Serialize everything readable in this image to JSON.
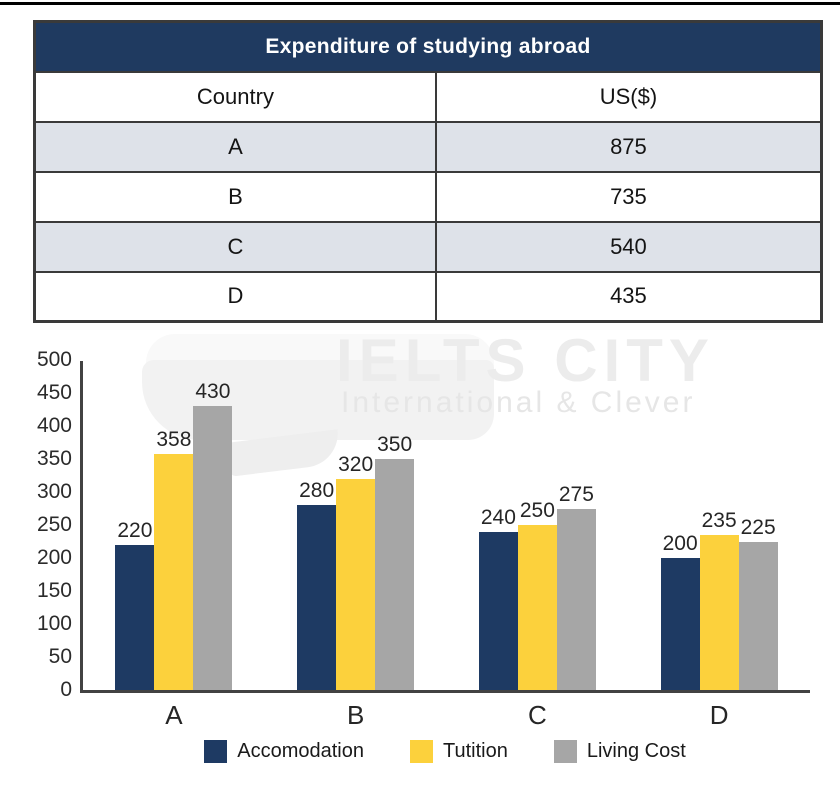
{
  "table": {
    "title": "Expenditure of studying abroad",
    "columns": [
      "Country",
      "US($)"
    ],
    "rows": [
      [
        "A",
        "875"
      ],
      [
        "B",
        "735"
      ],
      [
        "C",
        "540"
      ],
      [
        "D",
        "435"
      ]
    ]
  },
  "watermark": {
    "title": "IELTS CITY",
    "subtitle": "International & Clever"
  },
  "chart_data": {
    "type": "bar",
    "categories": [
      "A",
      "B",
      "C",
      "D"
    ],
    "series": [
      {
        "name": "Accomodation",
        "color": "#1E3A63",
        "values": [
          220,
          280,
          240,
          200
        ]
      },
      {
        "name": "Tutition",
        "color": "#FCD13C",
        "values": [
          358,
          320,
          250,
          235
        ]
      },
      {
        "name": "Living Cost",
        "color": "#A6A6A6",
        "values": [
          430,
          350,
          275,
          225
        ]
      }
    ],
    "title": "",
    "xlabel": "",
    "ylabel": "",
    "ylim": [
      0,
      500
    ],
    "yticks": [
      500,
      450,
      400,
      350,
      300,
      250,
      200,
      150,
      100,
      50,
      0
    ],
    "grid": false,
    "legend_position": "bottom",
    "value_labels": true
  },
  "colors": {
    "table_header_bg": "#1F3A60",
    "table_stripe_bg": "#DEE2E9",
    "table_border": "#3a3a3a",
    "axis": "#424242",
    "watermark_text": "#ececec"
  }
}
